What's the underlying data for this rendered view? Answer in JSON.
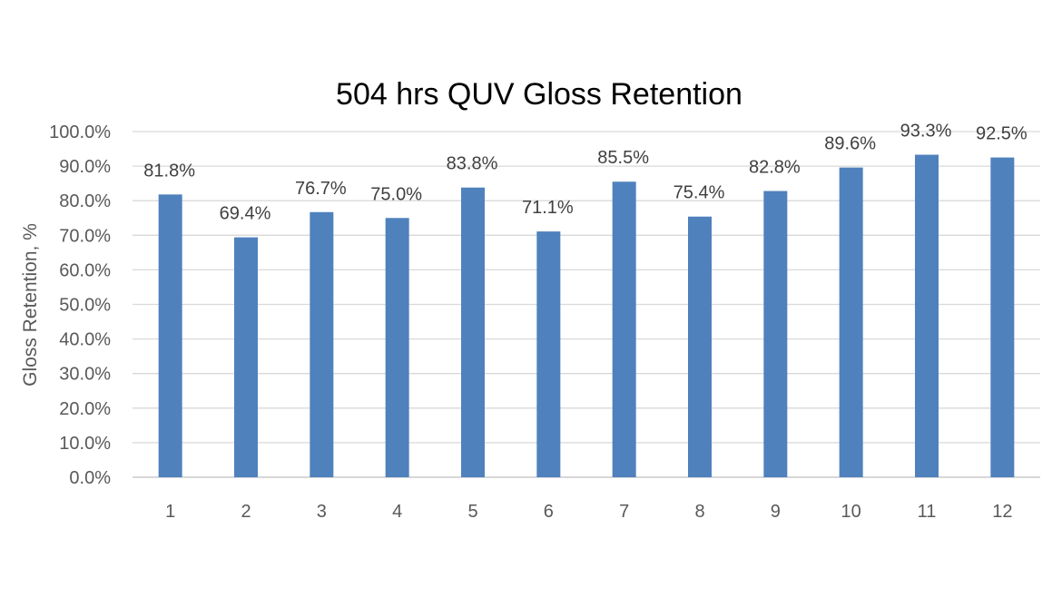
{
  "chart_data": {
    "type": "bar",
    "title": "504 hrs QUV Gloss Retention",
    "xlabel": "",
    "ylabel": "Gloss Retention, %",
    "categories": [
      "1",
      "2",
      "3",
      "4",
      "5",
      "6",
      "7",
      "8",
      "9",
      "10",
      "11",
      "12"
    ],
    "values": [
      81.8,
      69.4,
      76.7,
      75.0,
      83.8,
      71.1,
      85.5,
      75.4,
      82.8,
      89.6,
      93.3,
      92.5
    ],
    "data_labels": [
      "81.8%",
      "69.4%",
      "76.7%",
      "75.0%",
      "83.8%",
      "71.1%",
      "85.5%",
      "75.4%",
      "82.8%",
      "89.6%",
      "93.3%",
      "92.5%"
    ],
    "ylim": [
      0,
      100
    ],
    "ytick_values": [
      0,
      10,
      20,
      30,
      40,
      50,
      60,
      70,
      80,
      90,
      100
    ],
    "ytick_labels": [
      "0.0%",
      "10.0%",
      "20.0%",
      "30.0%",
      "40.0%",
      "50.0%",
      "60.0%",
      "70.0%",
      "80.0%",
      "90.0%",
      "100.0%"
    ],
    "grid": true,
    "legend": "none",
    "colors": {
      "bar": "#4f81bd",
      "grid": "#d9d9d9",
      "axis": "#bfbfbf"
    }
  }
}
